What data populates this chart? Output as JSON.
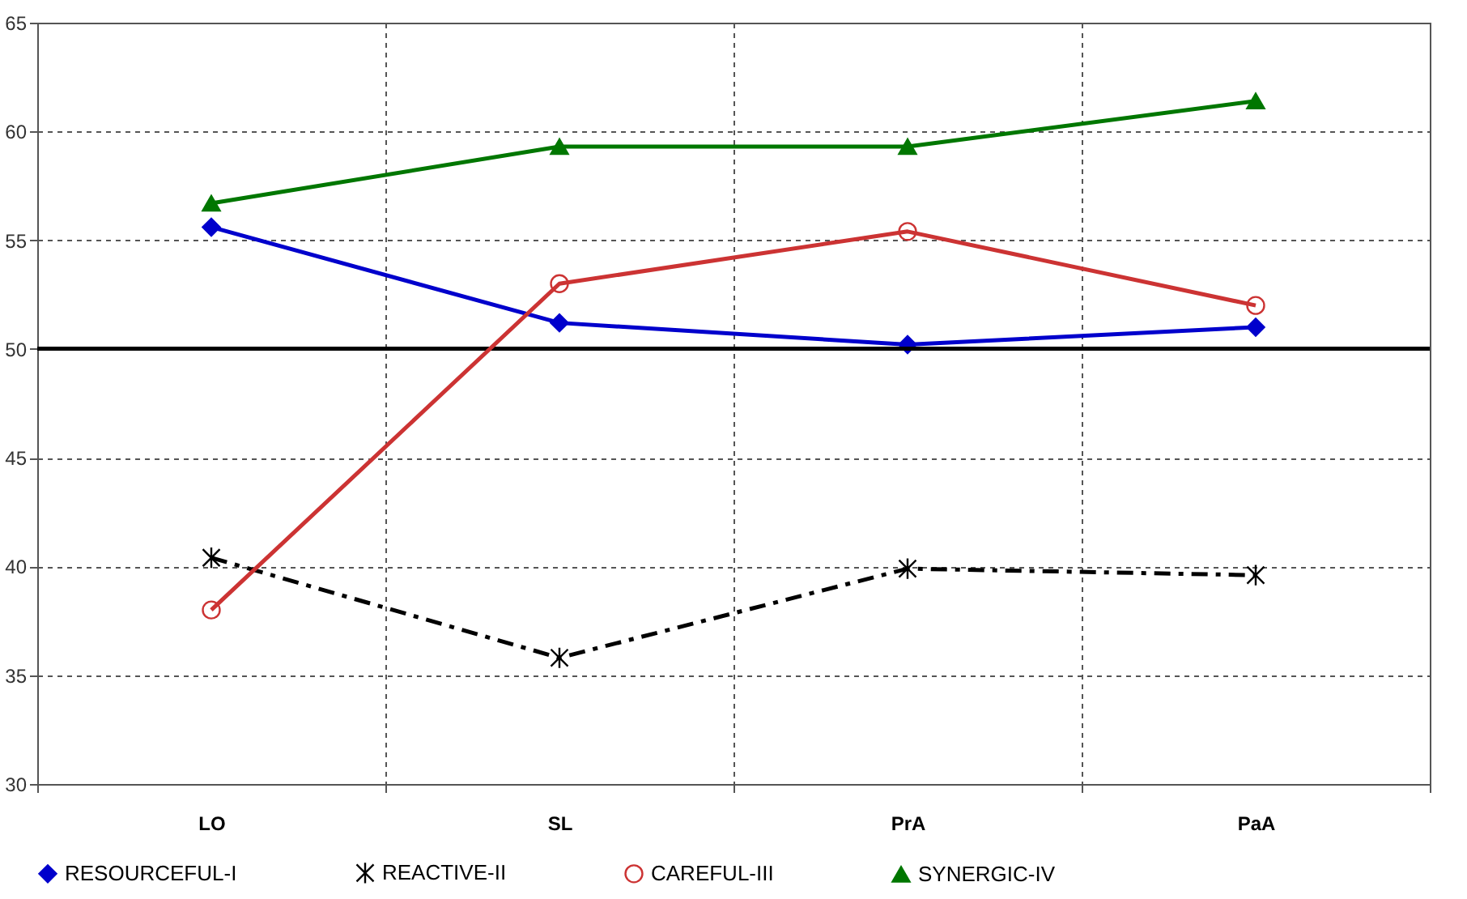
{
  "chart_data": {
    "type": "line",
    "categories": [
      "LO",
      "SL",
      "PrA",
      "PaA"
    ],
    "series": [
      {
        "name": "RESOURCEFUL-I",
        "color": "#0000cc",
        "marker": "diamond",
        "line_style": "solid",
        "values": [
          55.6,
          51.2,
          50.2,
          51.0
        ]
      },
      {
        "name": "REACTIVE-II",
        "color": "#000000",
        "marker": "cross",
        "line_style": "dashed",
        "values": [
          40.4,
          35.8,
          39.9,
          39.6
        ]
      },
      {
        "name": "CAREFUL-III",
        "color": "#cc3333",
        "marker": "circle",
        "line_style": "solid",
        "values": [
          38.0,
          53.0,
          55.4,
          52.0
        ]
      },
      {
        "name": "SYNERGIC-IV",
        "color": "#007700",
        "marker": "triangle",
        "line_style": "solid",
        "values": [
          56.7,
          59.3,
          59.3,
          61.4
        ]
      }
    ],
    "ylim": [
      30,
      65
    ],
    "yticks": [
      30,
      35,
      40,
      45,
      50,
      55,
      60,
      65
    ],
    "ref_lines": [
      {
        "axis": "y",
        "value": 50,
        "color": "#000000"
      }
    ],
    "grid": true,
    "legend": "bottom"
  }
}
